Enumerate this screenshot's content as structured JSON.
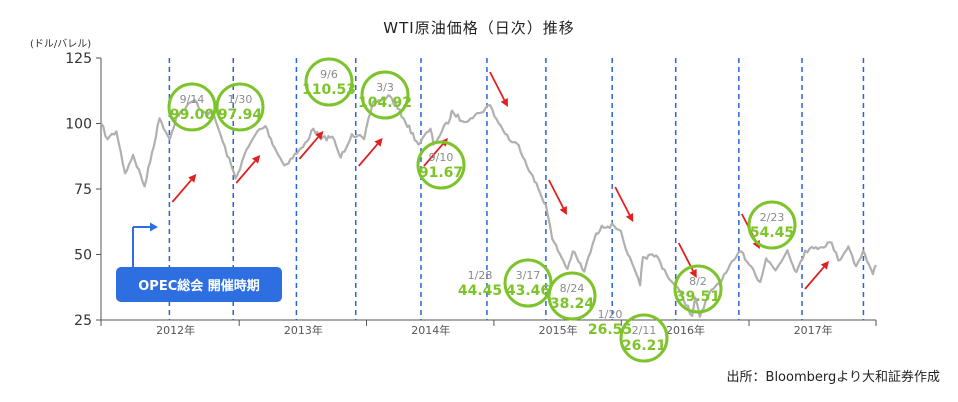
{
  "chart_data": {
    "type": "line",
    "title": "WTI原油価格（日次）推移",
    "ylabel": "(ドル/バレル)",
    "ylim": [
      25,
      125
    ],
    "yticks": [
      25,
      50,
      75,
      100,
      125
    ],
    "xlim": [
      "2011-06-01",
      "2017-06-30"
    ],
    "xticks": [
      {
        "label": "2012年",
        "date": "2012-01-01"
      },
      {
        "label": "2013年",
        "date": "2013-01-01"
      },
      {
        "label": "2014年",
        "date": "2014-01-01"
      },
      {
        "label": "2015年",
        "date": "2015-01-01"
      },
      {
        "label": "2016年",
        "date": "2016-01-01"
      },
      {
        "label": "2017年",
        "date": "2017-01-01"
      }
    ],
    "grid": false,
    "series": [
      {
        "color": "#b0b0b0",
        "points": [
          [
            "2011-06-01",
            100
          ],
          [
            "2011-06-20",
            94
          ],
          [
            "2011-07-15",
            97
          ],
          [
            "2011-08-09",
            81
          ],
          [
            "2011-09-01",
            88
          ],
          [
            "2011-10-04",
            76
          ],
          [
            "2011-11-16",
            102
          ],
          [
            "2011-12-15",
            94
          ],
          [
            "2012-01-04",
            103
          ],
          [
            "2012-02-24",
            109
          ],
          [
            "2012-03-15",
            105
          ],
          [
            "2012-04-20",
            103
          ],
          [
            "2012-05-15",
            93
          ],
          [
            "2012-06-21",
            79
          ],
          [
            "2012-07-16",
            88
          ],
          [
            "2012-08-22",
            97
          ],
          [
            "2012-09-14",
            99
          ],
          [
            "2012-10-10",
            91
          ],
          [
            "2012-11-07",
            84
          ],
          [
            "2012-12-31",
            91
          ],
          [
            "2013-01-30",
            98
          ],
          [
            "2013-02-20",
            94
          ],
          [
            "2013-03-25",
            95
          ],
          [
            "2013-04-18",
            87
          ],
          [
            "2013-05-20",
            96
          ],
          [
            "2013-06-24",
            94
          ],
          [
            "2013-07-19",
            108
          ],
          [
            "2013-08-28",
            110
          ],
          [
            "2013-09-06",
            110.5
          ],
          [
            "2013-10-15",
            102
          ],
          [
            "2013-11-27",
            92
          ],
          [
            "2013-12-31",
            98
          ],
          [
            "2014-01-09",
            92
          ],
          [
            "2014-02-26",
            102
          ],
          [
            "2014-03-03",
            104.9
          ],
          [
            "2014-03-31",
            101
          ],
          [
            "2014-04-25",
            102
          ],
          [
            "2014-05-20",
            104
          ],
          [
            "2014-06-20",
            107
          ],
          [
            "2014-07-15",
            100
          ],
          [
            "2014-08-20",
            93
          ],
          [
            "2014-09-10",
            91.7
          ],
          [
            "2014-10-15",
            81
          ],
          [
            "2014-11-27",
            69
          ],
          [
            "2014-12-15",
            56
          ],
          [
            "2015-01-28",
            44.45
          ],
          [
            "2015-02-12",
            51.2
          ],
          [
            "2015-03-17",
            43.46
          ],
          [
            "2015-04-15",
            56
          ],
          [
            "2015-05-06",
            61
          ],
          [
            "2015-06-10",
            61
          ],
          [
            "2015-06-30",
            59
          ],
          [
            "2015-07-20",
            50
          ],
          [
            "2015-08-24",
            38.24
          ],
          [
            "2015-09-01",
            49
          ],
          [
            "2015-10-09",
            49.6
          ],
          [
            "2015-11-20",
            40
          ],
          [
            "2015-12-21",
            34.7
          ],
          [
            "2016-01-20",
            26.55
          ],
          [
            "2016-01-29",
            33.6
          ],
          [
            "2016-02-11",
            26.21
          ],
          [
            "2016-03-15",
            36.5
          ],
          [
            "2016-04-15",
            40.4
          ],
          [
            "2016-05-25",
            49
          ],
          [
            "2016-06-08",
            51.2
          ],
          [
            "2016-07-08",
            45.4
          ],
          [
            "2016-08-02",
            39.51
          ],
          [
            "2016-08-19",
            48.5
          ],
          [
            "2016-09-15",
            43.9
          ],
          [
            "2016-10-19",
            51.6
          ],
          [
            "2016-11-14",
            43.3
          ],
          [
            "2016-12-09",
            51.5
          ],
          [
            "2017-01-03",
            52.3
          ],
          [
            "2017-02-23",
            54.45
          ],
          [
            "2017-03-14",
            47.7
          ],
          [
            "2017-04-12",
            53.1
          ],
          [
            "2017-05-04",
            45.5
          ],
          [
            "2017-05-24",
            51.4
          ],
          [
            "2017-06-21",
            42.5
          ],
          [
            "2017-06-30",
            46
          ]
        ]
      }
    ],
    "opec_meetings": [
      "2011-12-14",
      "2012-06-14",
      "2012-12-12",
      "2013-05-31",
      "2013-12-04",
      "2014-06-11",
      "2014-11-27",
      "2015-06-05",
      "2015-12-04",
      "2016-06-02",
      "2016-11-30",
      "2017-05-25"
    ],
    "annotations": [
      {
        "date": "2012-09-14",
        "value": 99.0,
        "date_label": "9/14",
        "value_label": "99.00"
      },
      {
        "date": "2013-01-30",
        "value": 97.94,
        "date_label": "1/30",
        "value_label": "97.94"
      },
      {
        "date": "2013-09-06",
        "value": 110.53,
        "date_label": "9/6",
        "value_label": "110.53"
      },
      {
        "date": "2014-03-03",
        "value": 104.92,
        "date_label": "3/3",
        "value_label": "104.92"
      },
      {
        "date": "2014-09-10",
        "value": 91.67,
        "date_label": "9/10",
        "value_label": "91.67"
      },
      {
        "date": "2015-01-28",
        "value": 44.45,
        "date_label": "1/28",
        "value_label": "44.45"
      },
      {
        "date": "2015-03-17",
        "value": 43.46,
        "date_label": "3/17",
        "value_label": "43.46"
      },
      {
        "date": "2015-08-24",
        "value": 38.24,
        "date_label": "8/24",
        "value_label": "38.24"
      },
      {
        "date": "2016-01-20",
        "value": 26.55,
        "date_label": "1/20",
        "value_label": "26.55"
      },
      {
        "date": "2016-02-11",
        "value": 26.21,
        "date_label": "2/11",
        "value_label": "26.21"
      },
      {
        "date": "2016-08-02",
        "value": 39.51,
        "date_label": "8/2",
        "value_label": "39.51"
      },
      {
        "date": "2017-02-23",
        "value": 54.45,
        "date_label": "2/23",
        "value_label": "54.45"
      }
    ],
    "trend_arrows": [
      {
        "meeting": "2011-12-14",
        "direction": "up"
      },
      {
        "meeting": "2012-06-14",
        "direction": "up"
      },
      {
        "meeting": "2012-12-12",
        "direction": "up"
      },
      {
        "meeting": "2013-05-31",
        "direction": "up"
      },
      {
        "meeting": "2013-12-04",
        "direction": "up"
      },
      {
        "meeting": "2014-06-11",
        "direction": "down"
      },
      {
        "meeting": "2014-11-27",
        "direction": "down"
      },
      {
        "meeting": "2015-06-05",
        "direction": "down"
      },
      {
        "meeting": "2015-12-04",
        "direction": "down"
      },
      {
        "meeting": "2016-06-02",
        "direction": "down"
      },
      {
        "meeting": "2016-11-30",
        "direction": "up"
      }
    ],
    "legend": {
      "label": "OPEC総会 開催時期",
      "placement": "bottom-left"
    },
    "colors": {
      "line": "#b0b0b0",
      "meeting_line": "#2a63d6",
      "annotation": "#7cc42a",
      "arrow": "#e02020",
      "legend_bg": "#2d6fe0"
    }
  },
  "source": "出所：Bloombergより大和証券作成"
}
